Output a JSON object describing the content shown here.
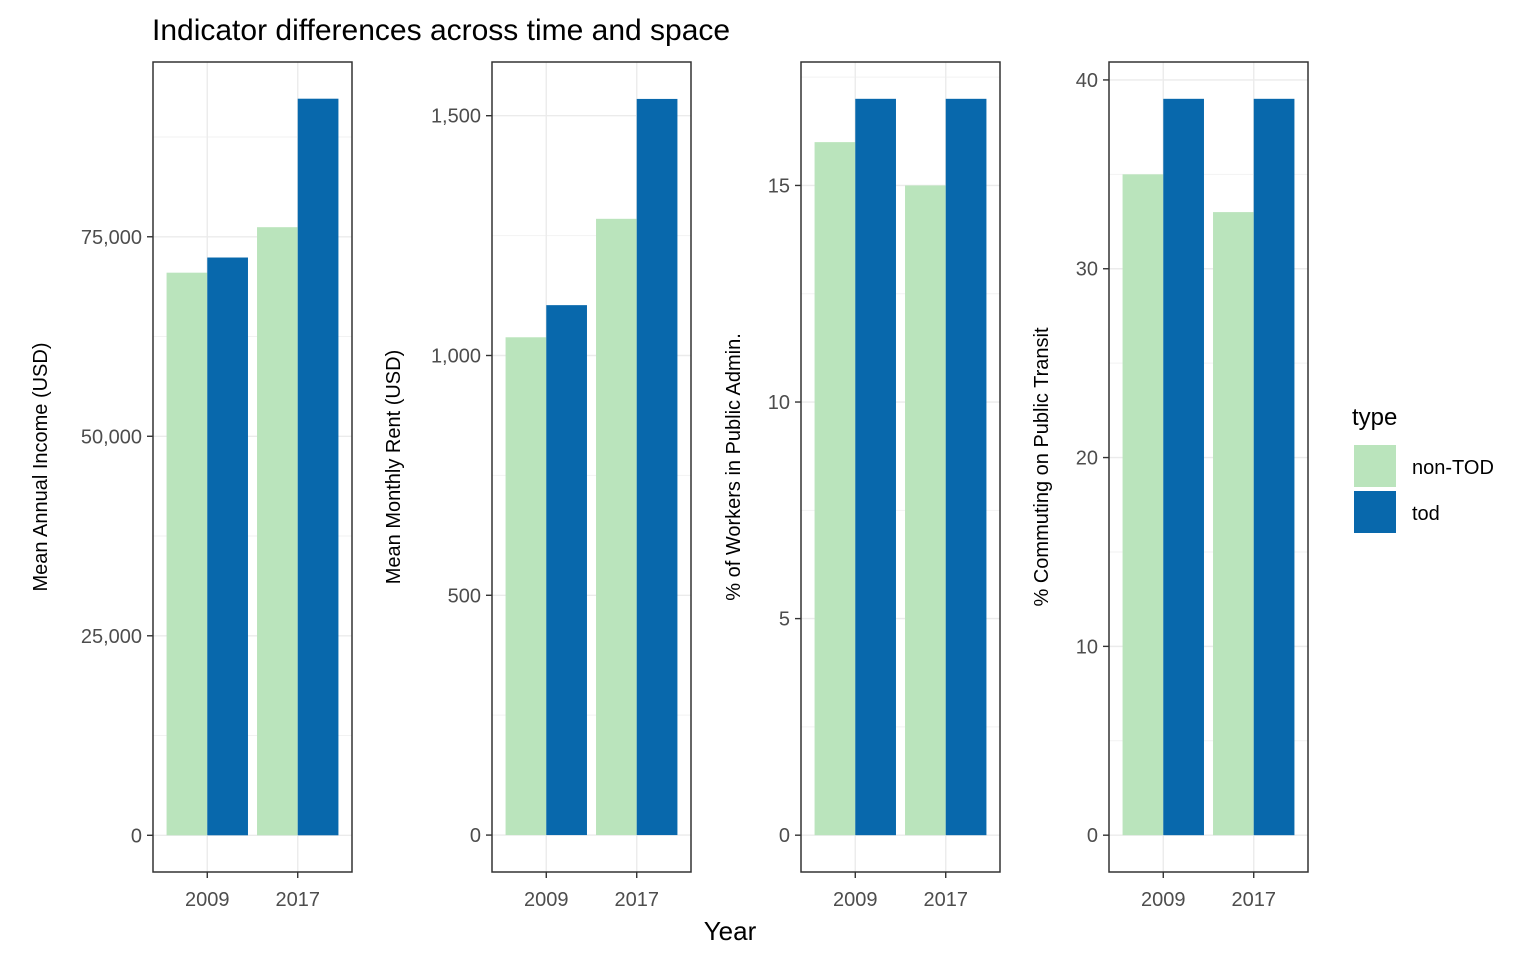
{
  "title": "Indicator differences across time and space",
  "xlabel": "Year",
  "legend": {
    "title": "type",
    "position": "right",
    "items": [
      {
        "label": "non-TOD",
        "color": "#bae4bc"
      },
      {
        "label": "tod",
        "color": "#0868ac"
      }
    ]
  },
  "chart_data": [
    {
      "type": "bar",
      "categories": [
        "2009",
        "2017"
      ],
      "series": [
        {
          "name": "non-TOD",
          "values": [
            70500,
            76200
          ]
        },
        {
          "name": "tod",
          "values": [
            72400,
            92300
          ]
        }
      ],
      "ylabel": "Mean Annual Income (USD)",
      "yticks": [
        0,
        25000,
        50000,
        75000
      ],
      "ytick_labels": [
        "0",
        "25,000",
        "50,000",
        "75,000"
      ],
      "ylim": [
        -4600,
        96900
      ],
      "grid": true
    },
    {
      "type": "bar",
      "categories": [
        "2009",
        "2017"
      ],
      "series": [
        {
          "name": "non-TOD",
          "values": [
            1038,
            1285
          ]
        },
        {
          "name": "tod",
          "values": [
            1105,
            1535
          ]
        }
      ],
      "ylabel": "Mean Monthly Rent (USD)",
      "yticks": [
        0,
        500,
        1000,
        1500
      ],
      "ytick_labels": [
        "0",
        "500",
        "1,000",
        "1,500"
      ],
      "ylim": [
        -77,
        1612
      ],
      "grid": true
    },
    {
      "type": "bar",
      "categories": [
        "2009",
        "2017"
      ],
      "series": [
        {
          "name": "non-TOD",
          "values": [
            16,
            15
          ]
        },
        {
          "name": "tod",
          "values": [
            17,
            17
          ]
        }
      ],
      "ylabel": "% of Workers in Public Admin.",
      "yticks": [
        0,
        5,
        10,
        15
      ],
      "ytick_labels": [
        "0",
        "5",
        "10",
        "15"
      ],
      "ylim": [
        -0.85,
        17.85
      ],
      "grid": true
    },
    {
      "type": "bar",
      "categories": [
        "2009",
        "2017"
      ],
      "series": [
        {
          "name": "non-TOD",
          "values": [
            35,
            33
          ]
        },
        {
          "name": "tod",
          "values": [
            39,
            39
          ]
        }
      ],
      "ylabel": "% Commuting on Public Transit",
      "yticks": [
        0,
        10,
        20,
        30,
        40
      ],
      "ytick_labels": [
        "0",
        "10",
        "20",
        "30",
        "40"
      ],
      "ylim": [
        -1.95,
        40.95
      ],
      "grid": true
    }
  ]
}
